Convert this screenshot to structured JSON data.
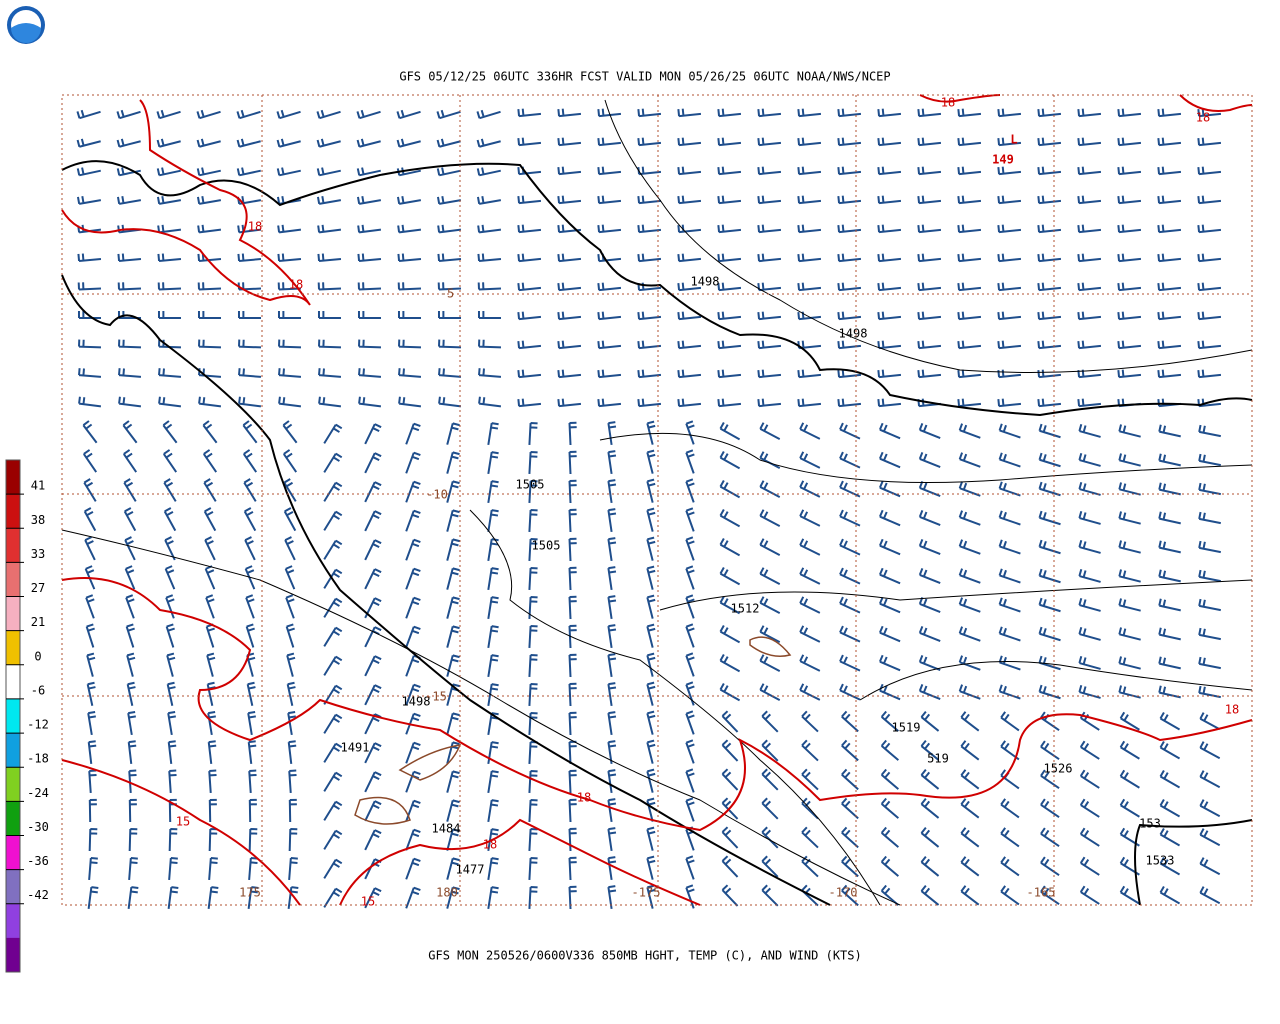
{
  "header": {
    "title": "GFS 05/12/25 06UTC 336HR FCST VALID MON 05/26/25 06UTC NOAA/NWS/NCEP"
  },
  "footer": {
    "caption": "GFS MON 250526/0600V336 850MB HGHT, TEMP (C), AND WIND (KTS)"
  },
  "colorbar": {
    "labels": [
      "41",
      "38",
      "33",
      "27",
      "21",
      "0",
      "-6",
      "-12",
      "-18",
      "-24",
      "-30",
      "-36",
      "-42"
    ],
    "colors": [
      "#9a0000",
      "#cc1010",
      "#e03030",
      "#e87070",
      "#f6b0c0",
      "#f0c000",
      "#ffffff",
      "#00e8f0",
      "#10a0e0",
      "#80d020",
      "#10a010",
      "#f010d0",
      "#8070c0",
      "#9040e0",
      "#700090"
    ]
  },
  "map": {
    "labels": [
      {
        "text": "L",
        "color": "#d00000"
      },
      {
        "text": "149",
        "color": "#d00000"
      },
      {
        "text": "18",
        "color": "#d00000"
      },
      {
        "text": "18",
        "color": "#d00000"
      },
      {
        "text": "18",
        "color": "#d00000"
      },
      {
        "text": "18",
        "color": "#d00000"
      },
      {
        "text": "18",
        "color": "#d00000"
      },
      {
        "text": "18",
        "color": "#d00000"
      },
      {
        "text": "18",
        "color": "#d00000"
      },
      {
        "text": "15",
        "color": "#d00000"
      },
      {
        "text": "15",
        "color": "#d00000"
      },
      {
        "text": "1498",
        "color": "#000000"
      },
      {
        "text": "1498",
        "color": "#000000"
      },
      {
        "text": "1498",
        "color": "#000000"
      },
      {
        "text": "1505",
        "color": "#000000"
      },
      {
        "text": "1505",
        "color": "#000000"
      },
      {
        "text": "1512",
        "color": "#000000"
      },
      {
        "text": "1519",
        "color": "#000000"
      },
      {
        "text": "519",
        "color": "#000000"
      },
      {
        "text": "1526",
        "color": "#000000"
      },
      {
        "text": "153",
        "color": "#000000"
      },
      {
        "text": "1533",
        "color": "#000000"
      },
      {
        "text": "1491",
        "color": "#000000"
      },
      {
        "text": "1484",
        "color": "#000000"
      },
      {
        "text": "1477",
        "color": "#000000"
      },
      {
        "text": "-5",
        "color": "#8b4a2b"
      },
      {
        "text": "-10",
        "color": "#8b4a2b"
      },
      {
        "text": "-15",
        "color": "#8b4a2b"
      },
      {
        "text": "-175",
        "color": "#8b4a2b"
      },
      {
        "text": "-170",
        "color": "#8b4a2b"
      },
      {
        "text": "-165",
        "color": "#8b4a2b"
      },
      {
        "text": "175",
        "color": "#8b4a2b"
      },
      {
        "text": "180",
        "color": "#8b4a2b"
      }
    ]
  }
}
